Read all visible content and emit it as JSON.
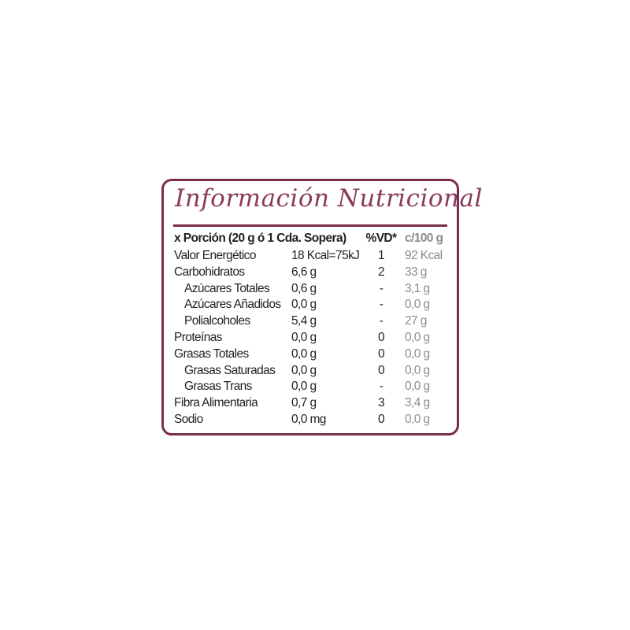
{
  "title": "Información Nutricional",
  "colors": {
    "border": "#7b2b4b",
    "title": "#8a3a5c",
    "per100": "#8c8c8c"
  },
  "header": {
    "portion": "x Porción (20 g ó 1 Cda. Sopera)",
    "vd": "%VD*",
    "per100": "c/100 g"
  },
  "rows": [
    {
      "label": "Valor Energético",
      "value": "18 Kcal=75kJ",
      "vd": "1",
      "per100": "92 Kcal",
      "indent": false
    },
    {
      "label": "Carbohidratos",
      "value": "6,6 g",
      "vd": "2",
      "per100": "33 g",
      "indent": false
    },
    {
      "label": "Azúcares Totales",
      "value": "0,6 g",
      "vd": "-",
      "per100": "3,1 g",
      "indent": true
    },
    {
      "label": "Azúcares Añadidos",
      "value": "0,0 g",
      "vd": "-",
      "per100": "0,0 g",
      "indent": true
    },
    {
      "label": "Polialcoholes",
      "value": "5,4 g",
      "vd": "-",
      "per100": "27 g",
      "indent": true
    },
    {
      "label": "Proteínas",
      "value": "0,0 g",
      "vd": "0",
      "per100": "0,0 g",
      "indent": false
    },
    {
      "label": "Grasas Totales",
      "value": "0,0 g",
      "vd": "0",
      "per100": "0,0 g",
      "indent": false
    },
    {
      "label": "Grasas Saturadas",
      "value": "0,0 g",
      "vd": "0",
      "per100": "0,0 g",
      "indent": true
    },
    {
      "label": "Grasas Trans",
      "value": "0,0 g",
      "vd": "-",
      "per100": "0,0 g",
      "indent": true
    },
    {
      "label": "Fibra Alimentaria",
      "value": "0,7 g",
      "vd": "3",
      "per100": "3,4 g",
      "indent": false
    },
    {
      "label": "Sodio",
      "value": "0,0 mg",
      "vd": "0",
      "per100": "0,0 g",
      "indent": false
    }
  ]
}
